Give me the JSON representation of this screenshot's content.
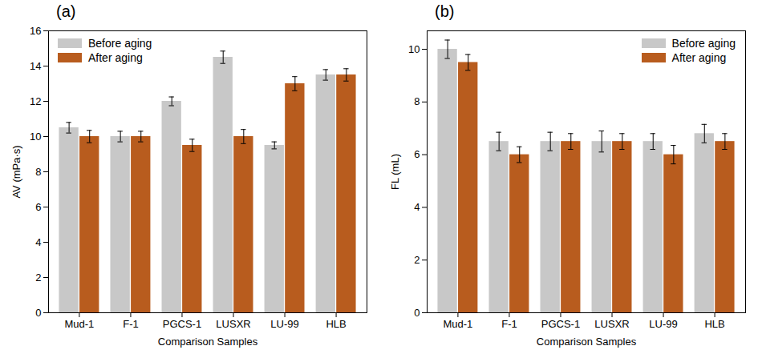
{
  "chart_data": [
    {
      "type": "bar",
      "title": "(a)",
      "x_label": "Comparison Samples",
      "y_label": "AV (mPa·s)",
      "categories": [
        "Mud-1",
        "F-1",
        "PGCS-1",
        "LUSXR",
        "LU-99",
        "HLB"
      ],
      "series": [
        {
          "name": "Before aging",
          "color": "#c8c8c8",
          "values": [
            10.5,
            10.0,
            12.0,
            14.5,
            9.5,
            13.5
          ],
          "errors": [
            0.3,
            0.3,
            0.25,
            0.35,
            0.2,
            0.3
          ]
        },
        {
          "name": "After aging",
          "color": "#b85c1e",
          "values": [
            10.0,
            10.0,
            9.5,
            10.0,
            13.0,
            13.5
          ],
          "errors": [
            0.35,
            0.3,
            0.35,
            0.4,
            0.4,
            0.35
          ]
        }
      ],
      "ylim": [
        0,
        16
      ],
      "yticks": [
        0,
        2,
        4,
        6,
        8,
        10,
        12,
        14,
        16
      ],
      "grid": false,
      "legend": "upper left"
    },
    {
      "type": "bar",
      "title": "(b)",
      "x_label": "Comparison Samples",
      "y_label": "FL (mL)",
      "categories": [
        "Mud-1",
        "F-1",
        "PGCS-1",
        "LUSXR",
        "LU-99",
        "HLB"
      ],
      "series": [
        {
          "name": "Before aging",
          "color": "#c8c8c8",
          "values": [
            10.0,
            6.5,
            6.5,
            6.5,
            6.5,
            6.8
          ],
          "errors": [
            0.35,
            0.35,
            0.35,
            0.4,
            0.3,
            0.35
          ]
        },
        {
          "name": "After aging",
          "color": "#b85c1e",
          "values": [
            9.5,
            6.0,
            6.5,
            6.5,
            6.0,
            6.5
          ],
          "errors": [
            0.3,
            0.3,
            0.3,
            0.3,
            0.35,
            0.3
          ]
        }
      ],
      "ylim": [
        0,
        10.7
      ],
      "yticks": [
        0,
        2,
        4,
        6,
        8,
        10
      ],
      "grid": false,
      "legend": "upper right"
    }
  ]
}
